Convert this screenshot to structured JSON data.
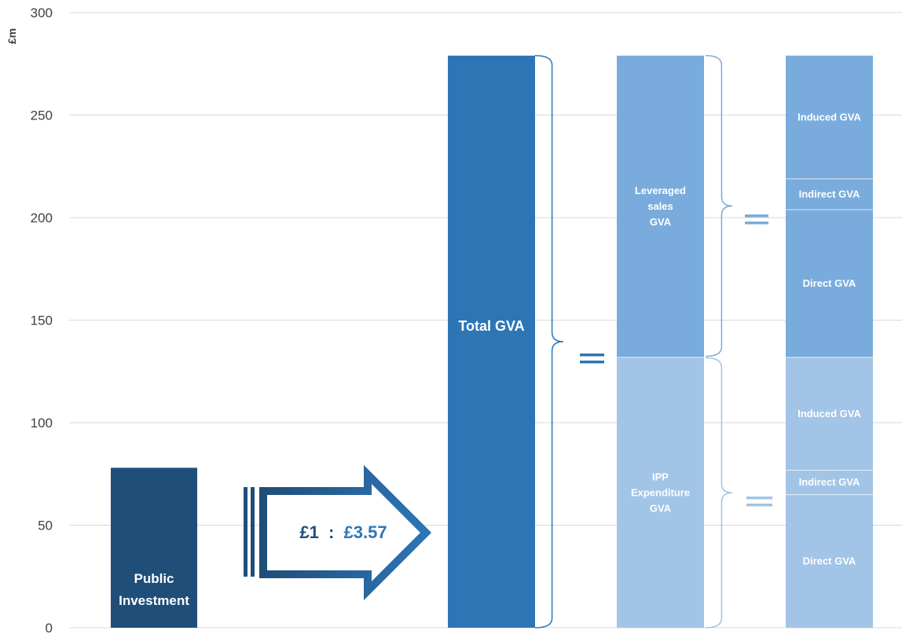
{
  "chart_data": {
    "type": "bar",
    "ylabel": "£m",
    "ylim": [
      0,
      300
    ],
    "yticks": [
      0,
      50,
      100,
      150,
      200,
      250,
      300
    ],
    "grid": true,
    "bars": [
      {
        "name": "public-investment",
        "label_lines": [
          "Public",
          "Investment"
        ],
        "segments": [
          {
            "value": 78,
            "color": "#1f4e79"
          }
        ]
      },
      {
        "name": "total-gva",
        "label_lines": [
          "Total GVA"
        ],
        "segments": [
          {
            "value": 279,
            "color": "#2e75b6"
          }
        ]
      },
      {
        "name": "gva-split",
        "label_lines": [],
        "segments": [
          {
            "value": 132,
            "color": "#a2c4e6",
            "label_lines": [
              "IPP",
              "Expenditure",
              "GVA"
            ]
          },
          {
            "value": 147,
            "color": "#79acdc",
            "label_lines": [
              "Leveraged",
              "sales",
              "GVA"
            ]
          }
        ]
      },
      {
        "name": "gva-detail",
        "label_lines": [],
        "segments": [
          {
            "value": 65,
            "color": "#a2c4e6",
            "label_lines": [
              "Direct GVA"
            ]
          },
          {
            "value": 12,
            "color": "#a2c4e6",
            "label_lines": [
              "Indirect GVA"
            ]
          },
          {
            "value": 55,
            "color": "#a2c4e6",
            "label_lines": [
              "Induced GVA"
            ]
          },
          {
            "value": 72,
            "color": "#79acdc",
            "label_lines": [
              "Direct GVA"
            ]
          },
          {
            "value": 15,
            "color": "#79acdc",
            "label_lines": [
              "Indirect GVA"
            ]
          },
          {
            "value": 60,
            "color": "#79acdc",
            "label_lines": [
              "Induced GVA"
            ]
          }
        ]
      }
    ],
    "ratio": {
      "left": "£1",
      "sep": ":",
      "right": "£3.57"
    },
    "colors": {
      "dark": "#1f4e79",
      "mid": "#2e75b6",
      "light": "#79acdc",
      "lighter": "#a2c4e6",
      "grid": "#d9d9d9"
    }
  }
}
